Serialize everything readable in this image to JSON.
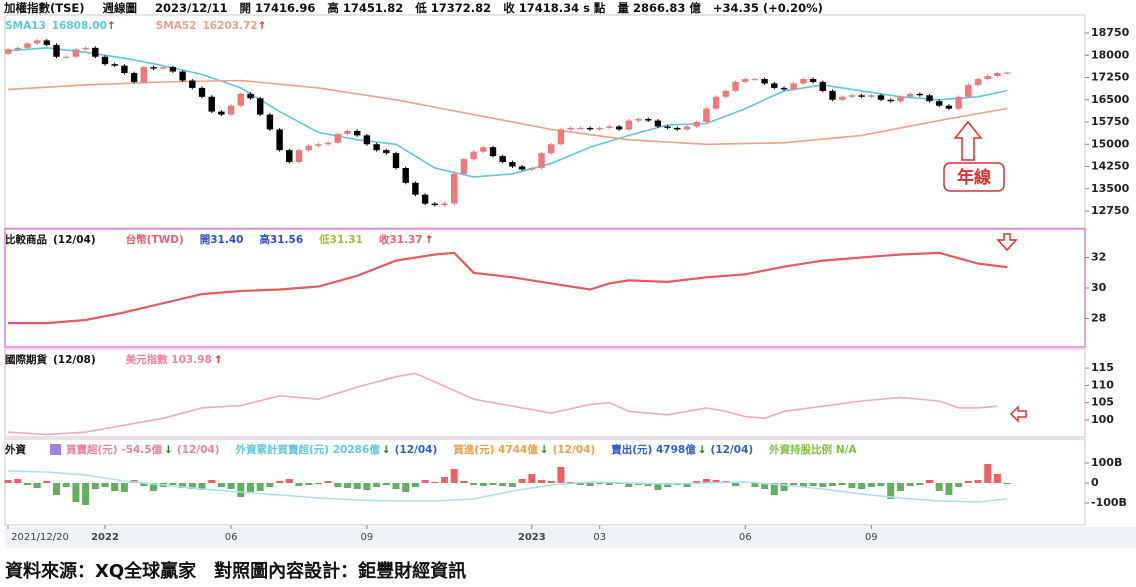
{
  "header": {
    "symbol": "加權指數(TSE)",
    "period": "週線圖",
    "date": "2023/12/11",
    "open": "開 17416.96",
    "high": "高 17451.82",
    "low": "低 17372.82",
    "close": "收 17418.34 s 點",
    "volume": "量 2866.83 億",
    "change": "+34.35 (+0.20%)"
  },
  "chart_data": [
    {
      "type": "candlestick",
      "up_color": "#f07878",
      "down_color": "#000000",
      "xlim": [
        -0.31,
        111.03
      ],
      "ylim": [
        12177,
        19357
      ],
      "yticks": [
        18750,
        18000,
        17250,
        16500,
        15750,
        15000,
        14250,
        13500,
        12750
      ],
      "open": [
        18050,
        18200,
        18250,
        18400,
        18500,
        18350,
        17950,
        17950,
        18200,
        18250,
        17950,
        17700,
        17650,
        17400,
        17100,
        17600,
        17550,
        17600,
        17450,
        17150,
        16900,
        16600,
        16100,
        16000,
        16300,
        16700,
        16550,
        16000,
        15500,
        14800,
        14400,
        14800,
        14950,
        15000,
        15050,
        15350,
        15450,
        15300,
        15000,
        14800,
        14700,
        14200,
        13700,
        13300,
        13000,
        12950,
        13000,
        14000,
        14500,
        14750,
        14900,
        14600,
        14400,
        14250,
        14150,
        14200,
        14700,
        15000,
        15500,
        15550,
        15550,
        15500,
        15550,
        15600,
        15500,
        15800,
        15850,
        15800,
        15600,
        15550,
        15500,
        15600,
        15750,
        16200,
        16600,
        16800,
        17100,
        17200,
        17200,
        17050,
        16900,
        16850,
        17050,
        17200,
        17100,
        16800,
        16500,
        16600,
        16650,
        16600,
        16650,
        16500,
        16450,
        16600,
        16700,
        16650,
        16450,
        16300,
        16200,
        16600,
        17000,
        17200,
        17300,
        17416.96
      ],
      "high": [
        18250,
        18300,
        18450,
        18550,
        18550,
        18400,
        18000,
        18250,
        18300,
        18300,
        18000,
        17750,
        17700,
        17450,
        17650,
        17650,
        17650,
        17650,
        17500,
        17200,
        16950,
        16650,
        16150,
        16350,
        16750,
        16750,
        16600,
        16050,
        15550,
        14850,
        14850,
        15000,
        15050,
        15100,
        15400,
        15500,
        15500,
        15350,
        15050,
        14850,
        14750,
        14250,
        13750,
        13350,
        13050,
        13050,
        14050,
        14550,
        14800,
        14950,
        14950,
        14650,
        14450,
        14300,
        14250,
        14750,
        15050,
        15550,
        15600,
        15600,
        15600,
        15600,
        15650,
        15650,
        15850,
        15900,
        15900,
        15850,
        15650,
        15600,
        15650,
        15800,
        16250,
        16650,
        16850,
        17150,
        17250,
        17250,
        17250,
        17100,
        16950,
        17100,
        17250,
        17250,
        17150,
        16850,
        16650,
        16700,
        16700,
        16700,
        16700,
        16550,
        16650,
        16750,
        16750,
        16700,
        16500,
        16350,
        16650,
        17050,
        17250,
        17350,
        17450,
        17451.82
      ],
      "low": [
        18000,
        18150,
        18200,
        18350,
        18300,
        17900,
        17900,
        17900,
        18150,
        17900,
        17650,
        17600,
        17350,
        17050,
        17050,
        17500,
        17500,
        17400,
        17100,
        16850,
        16550,
        16050,
        15950,
        15950,
        16250,
        16500,
        15950,
        15450,
        14750,
        14350,
        14350,
        14750,
        14900,
        14950,
        15000,
        15300,
        15250,
        14950,
        14750,
        14650,
        14150,
        13650,
        13250,
        12950,
        12900,
        12900,
        12950,
        13950,
        14450,
        14700,
        14550,
        14350,
        14200,
        14100,
        14100,
        14150,
        14650,
        14950,
        15450,
        15500,
        15450,
        15450,
        15500,
        15450,
        15450,
        15750,
        15750,
        15550,
        15500,
        15450,
        15450,
        15550,
        15700,
        16150,
        16550,
        16750,
        17050,
        17150,
        17000,
        16850,
        16800,
        16800,
        17000,
        17050,
        16750,
        16450,
        16450,
        16550,
        16550,
        16550,
        16450,
        16400,
        16400,
        16550,
        16600,
        16400,
        16250,
        16150,
        16150,
        16550,
        16950,
        17150,
        17250,
        17372.82
      ],
      "close": [
        18200,
        18250,
        18400,
        18500,
        18350,
        17950,
        17950,
        18200,
        18250,
        17950,
        17700,
        17650,
        17400,
        17100,
        17600,
        17550,
        17600,
        17450,
        17150,
        16900,
        16600,
        16100,
        16000,
        16300,
        16700,
        16550,
        16000,
        15500,
        14800,
        14400,
        14800,
        14950,
        15000,
        15050,
        15350,
        15450,
        15300,
        15000,
        14800,
        14700,
        14200,
        13700,
        13300,
        13000,
        12950,
        13000,
        14000,
        14500,
        14750,
        14900,
        14600,
        14400,
        14250,
        14150,
        14200,
        14700,
        15000,
        15500,
        15550,
        15550,
        15500,
        15550,
        15600,
        15500,
        15800,
        15850,
        15800,
        15600,
        15550,
        15500,
        15600,
        15750,
        16200,
        16600,
        16800,
        17100,
        17200,
        17200,
        17050,
        16900,
        16850,
        17050,
        17200,
        17100,
        16800,
        16500,
        16600,
        16650,
        16600,
        16650,
        16500,
        16450,
        16600,
        16700,
        16650,
        16450,
        16300,
        16200,
        16600,
        17000,
        17200,
        17300,
        17400,
        17418.34
      ],
      "series": [
        {
          "name": "SMA13",
          "color": "#5cc8e0",
          "value_label": "16808.00",
          "arrow": "↑",
          "x": [
            0,
            4,
            8,
            12,
            16,
            20,
            24,
            28,
            32,
            36,
            40,
            44,
            48,
            52,
            56,
            60,
            64,
            68,
            72,
            76,
            80,
            84,
            88,
            92,
            96,
            100,
            103
          ],
          "values": [
            18150,
            18250,
            18100,
            17900,
            17650,
            17350,
            16900,
            16100,
            15400,
            15150,
            15000,
            14200,
            13900,
            14000,
            14350,
            14900,
            15300,
            15650,
            15700,
            16200,
            16800,
            17000,
            16800,
            16600,
            16500,
            16600,
            16808
          ]
        },
        {
          "name": "SMA52",
          "color": "#f0a080",
          "value_label": "16203.72",
          "arrow": "↑",
          "x": [
            0,
            8,
            16,
            24,
            32,
            40,
            48,
            56,
            64,
            72,
            80,
            88,
            96,
            103
          ],
          "values": [
            16850,
            17000,
            17100,
            17150,
            16900,
            16500,
            16000,
            15500,
            15150,
            15000,
            15050,
            15300,
            15800,
            16203.72
          ]
        }
      ],
      "arrow_color": "#e03030",
      "annotation": "年線"
    },
    {
      "type": "line",
      "label": "比較商品",
      "date": "(12/04)",
      "legend": [
        {
          "text": "台幣(TWD)",
          "color": "#f06070"
        },
        {
          "text": "開31.40",
          "color": "#3050d0"
        },
        {
          "text": "高31.56",
          "color": "#3050d0"
        },
        {
          "text": "低31.31",
          "color": "#a0c030"
        },
        {
          "text": "收31.37",
          "color": "#f06070",
          "arrow": "↑"
        }
      ],
      "arrow_color": "#e03030",
      "xlim": [
        -0.31,
        111.03
      ],
      "ylim": [
        26.13,
        33.87
      ],
      "yticks": [
        32,
        30,
        28
      ],
      "series": [
        {
          "color": "#e85a5a",
          "x": [
            0,
            4,
            8,
            12,
            16,
            20,
            24,
            28,
            32,
            36,
            40,
            44,
            46,
            48,
            52,
            56,
            60,
            62,
            64,
            68,
            72,
            76,
            80,
            84,
            88,
            92,
            96,
            100,
            103
          ],
          "values": [
            27.7,
            27.7,
            27.9,
            28.4,
            29.0,
            29.6,
            29.8,
            29.9,
            30.1,
            30.8,
            31.8,
            32.2,
            32.3,
            31.0,
            30.7,
            30.3,
            29.9,
            30.3,
            30.5,
            30.4,
            30.7,
            30.9,
            31.4,
            31.8,
            32.0,
            32.2,
            32.3,
            31.6,
            31.37
          ]
        }
      ]
    },
    {
      "type": "line",
      "label": "國際期貨",
      "date": "(12/08)",
      "legend": [
        {
          "text": "美元指數 103.98",
          "color": "#f080a0",
          "arrow": "↑"
        }
      ],
      "arrow_color": "#e03030",
      "xlim": [
        -0.31,
        111.03
      ],
      "ylim": [
        95.1,
        120.5
      ],
      "yticks": [
        115,
        110,
        105,
        100
      ],
      "series": [
        {
          "color": "#f4a8bc",
          "x": [
            0,
            4,
            8,
            12,
            16,
            20,
            24,
            28,
            32,
            36,
            38,
            40,
            42,
            44,
            48,
            52,
            56,
            60,
            62,
            64,
            68,
            72,
            74,
            76,
            78,
            80,
            84,
            88,
            92,
            96,
            98,
            100,
            102
          ],
          "values": [
            96.5,
            95.8,
            96.5,
            98.5,
            100.5,
            103.5,
            104.2,
            107,
            106,
            109.5,
            111,
            112.5,
            113.5,
            111,
            106,
            104,
            102,
            104.5,
            105,
            102.5,
            101.5,
            103.5,
            102.5,
            101,
            100.5,
            102.5,
            104,
            105.5,
            106.5,
            105.5,
            103.5,
            103.5,
            103.98
          ]
        }
      ]
    },
    {
      "type": "bar",
      "label": "外資",
      "pos_color": "#f06060",
      "neg_color": "#60b060",
      "legend": [
        {
          "text": "買賣超(元) -54.5億",
          "color": "#f080a0",
          "arrow": "↓",
          "date": "(12/04)",
          "date_color": "#f080a0"
        },
        {
          "text": "外資累計買賣超(元) 20286億",
          "color": "#60c8e0",
          "arrow": "↓",
          "date": "(12/04)",
          "date_color": "#3060d0"
        },
        {
          "text": "買進(元) 4744億",
          "color": "#f0a040",
          "arrow": "↓",
          "date": "(12/04)",
          "date_color": "#f0a040"
        },
        {
          "text": "賣出(元) 4798億",
          "color": "#3060d0",
          "arrow": "↓",
          "date": "(12/04)",
          "date_color": "#3060d0"
        },
        {
          "text": "外資持股比例 N/A",
          "color": "#80c040"
        }
      ],
      "arrow_color": "#208020",
      "xlim": [
        -0.31,
        111.03
      ],
      "ylim": [
        -210,
        220
      ],
      "yticks": [
        {
          "value": 100,
          "label": "100B"
        },
        0,
        {
          "value": -100,
          "label": "-100B"
        }
      ],
      "values": [
        15,
        20,
        -10,
        -25,
        10,
        -60,
        -20,
        -95,
        -110,
        -30,
        -20,
        -40,
        -45,
        15,
        -15,
        -40,
        -20,
        -10,
        -25,
        -30,
        -35,
        15,
        -20,
        -30,
        -70,
        -45,
        -40,
        -20,
        10,
        20,
        -15,
        -10,
        -5,
        10,
        -20,
        -25,
        -30,
        -35,
        -20,
        -10,
        -30,
        -45,
        -20,
        15,
        5,
        30,
        70,
        10,
        -10,
        -15,
        -10,
        -15,
        -20,
        20,
        45,
        15,
        10,
        80,
        5,
        -10,
        -15,
        -5,
        -10,
        -5,
        -20,
        -10,
        -15,
        -35,
        -20,
        -10,
        -20,
        10,
        20,
        15,
        10,
        -15,
        5,
        -20,
        -30,
        -60,
        -40,
        -10,
        -20,
        -15,
        -20,
        -15,
        -10,
        -25,
        -30,
        -20,
        -15,
        -80,
        -40,
        -15,
        -10,
        15,
        -40,
        -60,
        -20,
        10,
        15,
        95,
        45,
        -5.45
      ],
      "series": [
        {
          "color": "#a8e0f0",
          "x": [
            0,
            4,
            8,
            12,
            16,
            20,
            24,
            28,
            32,
            36,
            40,
            44,
            48,
            52,
            56,
            60,
            64,
            68,
            72,
            76,
            80,
            84,
            88,
            92,
            96,
            100,
            103
          ],
          "values": [
            60,
            55,
            40,
            10,
            -10,
            -30,
            -45,
            -60,
            -75,
            -85,
            -90,
            -90,
            -80,
            -40,
            -10,
            5,
            0,
            -5,
            0,
            5,
            -10,
            -30,
            -55,
            -75,
            -90,
            -95,
            -80
          ]
        }
      ],
      "xticks": [
        {
          "value": 0,
          "label": "2021/12/20"
        },
        {
          "value": 10,
          "label": "2022"
        },
        {
          "value": 23,
          "label": "06"
        },
        {
          "value": 37,
          "label": "09"
        },
        {
          "value": 54,
          "label": "2023"
        },
        {
          "value": 61,
          "label": "03"
        },
        {
          "value": 76,
          "label": "06"
        },
        {
          "value": 89,
          "label": "09"
        }
      ]
    }
  ],
  "footer": "資料來源：XQ全球贏家　對照圖內容設計：鉅豐財經資訊"
}
